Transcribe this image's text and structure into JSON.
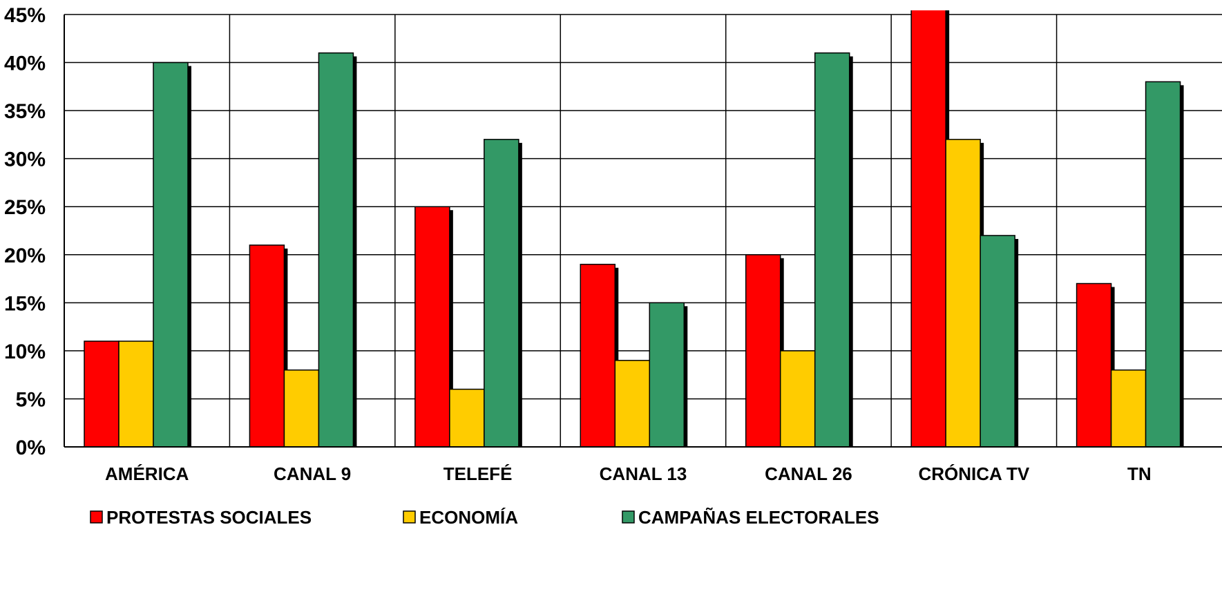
{
  "chart_data": {
    "type": "bar",
    "categories": [
      "AMÉRICA",
      "CANAL 9",
      "TELEFÉ",
      "CANAL 13",
      "CANAL 26",
      "CRÓNICA TV",
      "TN"
    ],
    "series": [
      {
        "name": "PROTESTAS SOCIALES",
        "color": "#ff0000",
        "values": [
          11,
          21,
          25,
          19,
          20,
          46,
          17
        ]
      },
      {
        "name": "ECONOMÍA",
        "color": "#ffcc00",
        "values": [
          11,
          8,
          6,
          9,
          10,
          32,
          8
        ]
      },
      {
        "name": "CAMPAÑAS ELECTORALES",
        "color": "#339966",
        "values": [
          40,
          41,
          32,
          15,
          41,
          22,
          38
        ]
      }
    ],
    "yticks": [
      "0%",
      "5%",
      "10%",
      "15%",
      "20%",
      "25%",
      "30%",
      "35%",
      "40%",
      "45%"
    ],
    "ylim": [
      0,
      45
    ],
    "grid": true,
    "legend_position": "bottom",
    "title": "",
    "xlabel": "",
    "ylabel": ""
  }
}
